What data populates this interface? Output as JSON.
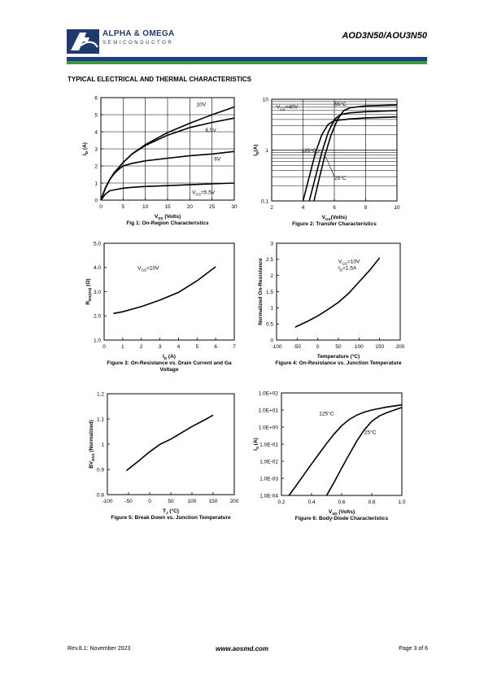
{
  "header": {
    "brand_name": "ALPHA & OMEGA",
    "brand_sub": "SEMICONDUCTOR",
    "part_number": "AOD3N50/AOU3N50",
    "logo_icon": "alpha-omega-logo-icon",
    "colors": {
      "blue": "#1f3d8a",
      "green": "#3a9b3a"
    }
  },
  "section_title": "TYPICAL ELECTRICAL AND THERMAL CHARACTERISTICS",
  "footer": {
    "left": "Rev.8.1: November 2023",
    "center": "www.aosmd.com",
    "right": "Page 3 of 6"
  },
  "chart_data": [
    {
      "id": "fig1",
      "type": "line",
      "title": "Fig 1: On-Region Characteristics",
      "xlabel": "V",
      "xlabel_sub": "DS",
      "xlabel_tail": " (Volts)",
      "ylabel": "I",
      "ylabel_sub": "D",
      "ylabel_tail": " (A)",
      "xlim": [
        0,
        30
      ],
      "ylim": [
        0,
        6
      ],
      "xticks": [
        0,
        5,
        10,
        15,
        20,
        25,
        30
      ],
      "yticks": [
        0,
        1,
        2,
        3,
        4,
        5,
        6
      ],
      "grid": true,
      "series": [
        {
          "name": "10V",
          "x": [
            0,
            1,
            2,
            3,
            4,
            5,
            7,
            10,
            15,
            20,
            25,
            30
          ],
          "y": [
            0,
            0.7,
            1.2,
            1.6,
            1.9,
            2.2,
            2.7,
            3.25,
            3.95,
            4.5,
            5.0,
            5.45
          ]
        },
        {
          "name": "6.5V",
          "x": [
            0,
            1,
            2,
            3,
            4,
            5,
            7,
            10,
            15,
            20,
            25,
            30
          ],
          "y": [
            0,
            0.7,
            1.2,
            1.6,
            1.9,
            2.2,
            2.7,
            3.2,
            3.8,
            4.25,
            4.55,
            4.8
          ]
        },
        {
          "name": "6V",
          "x": [
            0,
            1,
            2,
            3,
            4,
            5,
            7,
            10,
            15,
            20,
            25,
            30
          ],
          "y": [
            0,
            0.7,
            1.2,
            1.55,
            1.8,
            2.0,
            2.15,
            2.3,
            2.45,
            2.6,
            2.7,
            2.85
          ]
        },
        {
          "name": "5.5V",
          "x": [
            0,
            1,
            2,
            3,
            5,
            7,
            10,
            15,
            20,
            25,
            30
          ],
          "y": [
            0,
            0.35,
            0.55,
            0.6,
            0.7,
            0.75,
            0.8,
            0.85,
            0.9,
            0.95,
            1.0
          ]
        }
      ],
      "annotations": [
        {
          "text": "10V",
          "x": 21.5,
          "y": 5.5
        },
        {
          "text": "6.5V",
          "x": 23.5,
          "y": 4.0
        },
        {
          "text": "6V",
          "x": 25.5,
          "y": 2.3
        },
        {
          "text": "V",
          "sub": "GS",
          "tail": "=5.5V",
          "x": 20.5,
          "y": 0.35
        }
      ]
    },
    {
      "id": "fig2",
      "type": "line",
      "title": "Figure 2: Transfer Characteristics",
      "xlabel": "V",
      "xlabel_sub": "GS",
      "xlabel_tail": "(Volts)",
      "ylabel": "I",
      "ylabel_sub": "D",
      "ylabel_tail": "(A)",
      "xlim": [
        2,
        10
      ],
      "ylim": [
        0.1,
        10
      ],
      "yscale": "log",
      "xticks": [
        2,
        4,
        6,
        8,
        10
      ],
      "yticks": [
        0.1,
        1,
        10
      ],
      "ytick_labels": [
        "0.1",
        "1",
        "10"
      ],
      "grid": true,
      "series": [
        {
          "name": "-55°C",
          "x": [
            4.7,
            5.0,
            5.4,
            5.8,
            6.2,
            6.6,
            7.0,
            8,
            10
          ],
          "y": [
            0.1,
            0.25,
            0.8,
            2.0,
            4.0,
            6.0,
            6.8,
            7.4,
            7.7
          ]
        },
        {
          "name": "25°C",
          "x": [
            4.4,
            4.8,
            5.2,
            5.6,
            6.0,
            6.4,
            7,
            8,
            10
          ],
          "y": [
            0.1,
            0.3,
            0.9,
            2.2,
            4.0,
            5.0,
            5.4,
            5.7,
            6.0
          ]
        },
        {
          "name": "125°C",
          "x": [
            4.0,
            4.4,
            4.8,
            5.2,
            5.6,
            6.0,
            7,
            8,
            10
          ],
          "y": [
            0.1,
            0.3,
            0.9,
            2.0,
            3.2,
            3.8,
            4.1,
            4.3,
            4.5
          ]
        }
      ],
      "annotations": [
        {
          "text": "V",
          "sub": "GS",
          "tail": "=40V",
          "x": 2.3,
          "y": 6.5
        },
        {
          "text": "-55°C",
          "x": 5.9,
          "y": 7.5
        },
        {
          "text": "125°C",
          "x": 3.9,
          "y": 0.92
        },
        {
          "text": "25°C",
          "x": 6.0,
          "y": 0.26
        }
      ]
    },
    {
      "id": "fig3",
      "type": "line",
      "title": "Figure 3: On-Resistance vs. Drain Current and Ga",
      "title2": "Voltage",
      "xlabel": "I",
      "xlabel_sub": "D",
      "xlabel_tail": " (A)",
      "ylabel": "R",
      "ylabel_sub": "DS(ON)",
      "ylabel_tail": " (Ω)",
      "xlim": [
        0,
        7
      ],
      "ylim": [
        1.0,
        5.0
      ],
      "xticks": [
        0,
        1,
        2,
        3,
        4,
        5,
        6,
        7
      ],
      "yticks": [
        1.0,
        2.0,
        3.0,
        4.0,
        5.0
      ],
      "ytick_labels": [
        "1.0",
        "2.0",
        "3.0",
        "4.0",
        "5.0"
      ],
      "grid": false,
      "series": [
        {
          "name": "",
          "x": [
            0.5,
            1,
            2,
            3,
            4,
            5,
            6
          ],
          "y": [
            2.1,
            2.17,
            2.38,
            2.65,
            2.97,
            3.45,
            4.03
          ]
        }
      ],
      "annotations": [
        {
          "text": "V",
          "sub": "GS",
          "tail": "=10V",
          "x": 1.8,
          "y": 3.9
        }
      ]
    },
    {
      "id": "fig4",
      "type": "line",
      "title": "Figure 4: On-Resistance vs. Junction Temperature",
      "xlabel": "Temperature (°C)",
      "ylabel": "Normalized On-Resistance",
      "xlim": [
        -100,
        200
      ],
      "ylim": [
        0,
        3
      ],
      "xticks": [
        -100,
        -50,
        0,
        50,
        100,
        150,
        200
      ],
      "yticks": [
        0,
        0.5,
        1,
        1.5,
        2,
        2.5,
        3
      ],
      "grid": false,
      "series": [
        {
          "name": "",
          "x": [
            -55,
            -25,
            0,
            25,
            50,
            75,
            100,
            125,
            150
          ],
          "y": [
            0.4,
            0.58,
            0.75,
            0.95,
            1.17,
            1.45,
            1.8,
            2.15,
            2.55
          ]
        }
      ],
      "annotations": [
        {
          "text": "V",
          "sub": "GS",
          "tail": "=10V",
          "x": 50,
          "y": 2.38
        },
        {
          "text": "I",
          "sub": "D",
          "tail": "=1.5A",
          "x": 50,
          "y": 2.18
        }
      ]
    },
    {
      "id": "fig5",
      "type": "line",
      "title": "Figure 5: Break Down vs. Junction Temperature",
      "xlabel": "T",
      "xlabel_sub": "J",
      "xlabel_tail": " (°C)",
      "ylabel": "BV",
      "ylabel_sub": "DSS",
      "ylabel_tail": " (Normalized)",
      "xlim": [
        -100,
        200
      ],
      "ylim": [
        0.8,
        1.2
      ],
      "xticks": [
        -100,
        -50,
        0,
        50,
        100,
        150,
        200
      ],
      "yticks": [
        0.8,
        0.9,
        1,
        1.1,
        1.2
      ],
      "ytick_labels": [
        "0.8",
        "0.9",
        "1",
        "1.1",
        "1.2"
      ],
      "grid": false,
      "series": [
        {
          "name": "",
          "x": [
            -55,
            -25,
            0,
            25,
            50,
            75,
            100,
            125,
            150
          ],
          "y": [
            0.895,
            0.935,
            0.97,
            1.0,
            1.02,
            1.045,
            1.07,
            1.092,
            1.115
          ]
        }
      ],
      "annotations": []
    },
    {
      "id": "fig6",
      "type": "line",
      "title": "Figure 6: Body-Diode Characteristics",
      "xlabel": "V",
      "xlabel_sub": "SD",
      "xlabel_tail": " (Volts)",
      "ylabel": "I",
      "ylabel_sub": "S",
      "ylabel_tail": " (A)",
      "xlim": [
        0.2,
        1.0
      ],
      "ylim": [
        0.0001,
        100
      ],
      "yscale": "log",
      "xticks": [
        0.2,
        0.4,
        0.6,
        0.8,
        1.0
      ],
      "yticks": [
        0.0001,
        0.001,
        0.01,
        0.1,
        1,
        10,
        100
      ],
      "xtick_labels": [
        "0.2",
        "0.4",
        "0.6",
        "0.8",
        "1.0"
      ],
      "ytick_labels": [
        "1.0E-04",
        "1.0E-03",
        "1.0E-02",
        "1.0E-01",
        "1.0E+00",
        "1.0E+01",
        "1.0E+02"
      ],
      "grid": false,
      "series": [
        {
          "name": "125°C",
          "x": [
            0.25,
            0.3,
            0.35,
            0.4,
            0.45,
            0.5,
            0.55,
            0.6,
            0.65,
            0.7,
            0.75,
            0.8,
            0.9,
            1.0
          ],
          "y": [
            0.0001,
            0.0004,
            0.0017,
            0.007,
            0.028,
            0.11,
            0.4,
            1.2,
            2.8,
            5.0,
            7.5,
            10,
            15,
            20
          ]
        },
        {
          "name": "25°C",
          "x": [
            0.5,
            0.55,
            0.6,
            0.65,
            0.7,
            0.75,
            0.8,
            0.85,
            0.9,
            0.95,
            1.0
          ],
          "y": [
            0.0001,
            0.0006,
            0.004,
            0.025,
            0.15,
            0.7,
            2.2,
            4.5,
            7.0,
            10,
            14
          ]
        }
      ],
      "annotations": [
        {
          "text": "125°C",
          "x": 0.45,
          "y": 5.0
        },
        {
          "text": "25°C",
          "x": 0.75,
          "y": 0.4
        }
      ]
    }
  ]
}
